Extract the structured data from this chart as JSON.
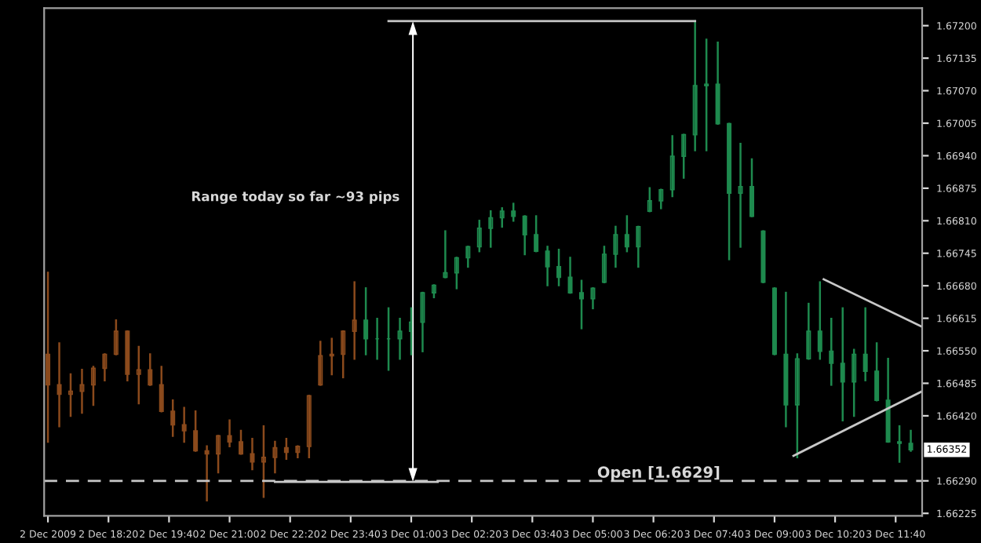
{
  "chart_data": {
    "type": "candlestick",
    "x": [
      "2009-12-02T17:00",
      "2009-12-02T17:15",
      "2009-12-02T17:30",
      "2009-12-02T17:45",
      "2009-12-02T18:00",
      "2009-12-02T18:15",
      "2009-12-02T18:30",
      "2009-12-02T18:45",
      "2009-12-02T19:00",
      "2009-12-02T19:15",
      "2009-12-02T19:30",
      "2009-12-02T19:45",
      "2009-12-02T20:00",
      "2009-12-02T20:15",
      "2009-12-02T20:30",
      "2009-12-02T20:45",
      "2009-12-02T21:00",
      "2009-12-02T21:15",
      "2009-12-02T21:30",
      "2009-12-02T21:45",
      "2009-12-02T22:00",
      "2009-12-02T22:15",
      "2009-12-02T22:30",
      "2009-12-02T22:45",
      "2009-12-02T23:00",
      "2009-12-02T23:15",
      "2009-12-02T23:30",
      "2009-12-02T23:45",
      "2009-12-03T00:00",
      "2009-12-03T00:15",
      "2009-12-03T00:30",
      "2009-12-03T00:45",
      "2009-12-03T01:00",
      "2009-12-03T01:15",
      "2009-12-03T01:30",
      "2009-12-03T01:45",
      "2009-12-03T02:00",
      "2009-12-03T02:15",
      "2009-12-03T02:30",
      "2009-12-03T02:45",
      "2009-12-03T03:00",
      "2009-12-03T03:15",
      "2009-12-03T03:30",
      "2009-12-03T03:45",
      "2009-12-03T04:00",
      "2009-12-03T04:15",
      "2009-12-03T04:30",
      "2009-12-03T04:45",
      "2009-12-03T05:00",
      "2009-12-03T05:15",
      "2009-12-03T05:30",
      "2009-12-03T05:45",
      "2009-12-03T06:00",
      "2009-12-03T06:15",
      "2009-12-03T06:30",
      "2009-12-03T06:45",
      "2009-12-03T07:00",
      "2009-12-03T07:15",
      "2009-12-03T07:30",
      "2009-12-03T07:45",
      "2009-12-03T08:00",
      "2009-12-03T08:15",
      "2009-12-03T08:30",
      "2009-12-03T08:45",
      "2009-12-03T09:00",
      "2009-12-03T09:15",
      "2009-12-03T09:30",
      "2009-12-03T09:45",
      "2009-12-03T10:00",
      "2009-12-03T10:15",
      "2009-12-03T10:30",
      "2009-12-03T10:45",
      "2009-12-03T11:00",
      "2009-12-03T11:15",
      "2009-12-03T11:30",
      "2009-12-03T11:45",
      "2009-12-03T12:00"
    ],
    "ohlc": [
      [
        1.66543,
        1.66706,
        1.66368,
        1.66482
      ],
      [
        1.66482,
        1.66565,
        1.66399,
        1.66463
      ],
      [
        1.66463,
        1.66503,
        1.6642,
        1.66469
      ],
      [
        1.66469,
        1.66512,
        1.66426,
        1.66482
      ],
      [
        1.66482,
        1.66518,
        1.66442,
        1.66515
      ],
      [
        1.66515,
        1.66543,
        1.66491,
        1.66543
      ],
      [
        1.66543,
        1.66611,
        1.66543,
        1.66589
      ],
      [
        1.66589,
        1.66589,
        1.66491,
        1.66503
      ],
      [
        1.66503,
        1.66558,
        1.66445,
        1.66512
      ],
      [
        1.66512,
        1.66543,
        1.66482,
        1.66482
      ],
      [
        1.66482,
        1.66518,
        1.66429,
        1.66429
      ],
      [
        1.66429,
        1.66451,
        1.6638,
        1.66402
      ],
      [
        1.66402,
        1.66436,
        1.66368,
        1.6639
      ],
      [
        1.6639,
        1.66429,
        1.6635,
        1.6635
      ],
      [
        1.6635,
        1.66359,
        1.66251,
        1.66344
      ],
      [
        1.66344,
        1.6638,
        1.66307,
        1.6638
      ],
      [
        1.6638,
        1.66411,
        1.66359,
        1.66368
      ],
      [
        1.66368,
        1.6639,
        1.66344,
        1.66344
      ],
      [
        1.66344,
        1.66374,
        1.66313,
        1.66328
      ],
      [
        1.66328,
        1.66399,
        1.66258,
        1.66337
      ],
      [
        1.66337,
        1.66368,
        1.66307,
        1.66356
      ],
      [
        1.66356,
        1.66374,
        1.66334,
        1.66347
      ],
      [
        1.66347,
        1.66359,
        1.66337,
        1.66359
      ],
      [
        1.66359,
        1.6646,
        1.66337,
        1.6646
      ],
      [
        1.66482,
        1.66568,
        1.66482,
        1.6654
      ],
      [
        1.6654,
        1.66574,
        1.66503,
        1.66543
      ],
      [
        1.66543,
        1.66589,
        1.66497,
        1.66589
      ],
      [
        1.66589,
        1.66687,
        1.66534,
        1.66611
      ],
      [
        1.66611,
        1.66675,
        1.66543,
        1.66574
      ],
      [
        1.66574,
        1.66614,
        1.66534,
        1.66574
      ],
      [
        1.66574,
        1.66635,
        1.66512,
        1.66574
      ],
      [
        1.66574,
        1.66614,
        1.66534,
        1.66589
      ],
      [
        1.66589,
        1.66635,
        1.66543,
        1.66607
      ],
      [
        1.66607,
        1.66666,
        1.66549,
        1.66666
      ],
      [
        1.66666,
        1.66681,
        1.66657,
        1.66681
      ],
      [
        1.66697,
        1.66789,
        1.66697,
        1.66706
      ],
      [
        1.66706,
        1.66736,
        1.66675,
        1.66736
      ],
      [
        1.66736,
        1.66758,
        1.66718,
        1.66758
      ],
      [
        1.66758,
        1.6681,
        1.66749,
        1.66795
      ],
      [
        1.66795,
        1.66829,
        1.66758,
        1.66816
      ],
      [
        1.66816,
        1.66835,
        1.66798,
        1.66829
      ],
      [
        1.66829,
        1.66844,
        1.6681,
        1.66819
      ],
      [
        1.66819,
        1.66819,
        1.66743,
        1.66782
      ],
      [
        1.66782,
        1.66819,
        1.66749,
        1.66749
      ],
      [
        1.66749,
        1.66758,
        1.66681,
        1.66718
      ],
      [
        1.66718,
        1.66752,
        1.66681,
        1.66697
      ],
      [
        1.66697,
        1.66736,
        1.66666,
        1.66666
      ],
      [
        1.66666,
        1.6669,
        1.66595,
        1.66654
      ],
      [
        1.66654,
        1.66675,
        1.66635,
        1.66675
      ],
      [
        1.66687,
        1.66758,
        1.66687,
        1.66743
      ],
      [
        1.66743,
        1.66798,
        1.66718,
        1.66782
      ],
      [
        1.66782,
        1.66819,
        1.66749,
        1.66758
      ],
      [
        1.66758,
        1.66798,
        1.66718,
        1.66798
      ],
      [
        1.66829,
        1.66875,
        1.66829,
        1.6685
      ],
      [
        1.6685,
        1.66872,
        1.66835,
        1.66872
      ],
      [
        1.66872,
        1.66979,
        1.66859,
        1.66939
      ],
      [
        1.66939,
        1.66982,
        1.66896,
        1.66982
      ],
      [
        1.66982,
        1.67209,
        1.66951,
        1.6708
      ],
      [
        1.6708,
        1.67172,
        1.66951,
        1.67083
      ],
      [
        1.67083,
        1.67166,
        1.67004,
        1.67004
      ],
      [
        1.67004,
        1.67004,
        1.66733,
        1.66865
      ],
      [
        1.66865,
        1.66964,
        1.66758,
        1.66878
      ],
      [
        1.66878,
        1.66933,
        1.66819,
        1.66819
      ],
      [
        1.66789,
        1.66789,
        1.66687,
        1.66687
      ],
      [
        1.66675,
        1.66675,
        1.66543,
        1.66543
      ],
      [
        1.66543,
        1.66666,
        1.66399,
        1.66442
      ],
      [
        1.66442,
        1.66543,
        1.66337,
        1.66534
      ],
      [
        1.66534,
        1.66644,
        1.66534,
        1.66589
      ],
      [
        1.66589,
        1.66687,
        1.66534,
        1.66549
      ],
      [
        1.66549,
        1.66614,
        1.66482,
        1.66525
      ],
      [
        1.66525,
        1.66635,
        1.66411,
        1.66488
      ],
      [
        1.66488,
        1.66552,
        1.6642,
        1.66543
      ],
      [
        1.66543,
        1.66635,
        1.66491,
        1.66509
      ],
      [
        1.66509,
        1.66565,
        1.66451,
        1.66451
      ],
      [
        1.66451,
        1.66534,
        1.66368,
        1.66368
      ],
      [
        1.66368,
        1.66399,
        1.66328,
        1.66365
      ],
      [
        1.66365,
        1.6639,
        1.6635,
        1.66352
      ]
    ],
    "colors": [
      "#8b4a1c",
      "#8b4a1c",
      "#8b4a1c",
      "#8b4a1c",
      "#8b4a1c",
      "#8b4a1c",
      "#8b4a1c",
      "#8b4a1c",
      "#8b4a1c",
      "#8b4a1c",
      "#8b4a1c",
      "#8b4a1c",
      "#8b4a1c",
      "#8b4a1c",
      "#8b4a1c",
      "#8b4a1c",
      "#8b4a1c",
      "#8b4a1c",
      "#8b4a1c",
      "#8b4a1c",
      "#8b4a1c",
      "#8b4a1c",
      "#8b4a1c",
      "#8b4a1c",
      "#8b4a1c",
      "#8b4a1c",
      "#8b4a1c",
      "#8b4a1c",
      "#1e8a4e",
      "#1e8a4e",
      "#1e8a4e",
      "#1e8a4e",
      "#1e8a4e",
      "#1e8a4e",
      "#1e8a4e",
      "#1e8a4e",
      "#1e8a4e",
      "#1e8a4e",
      "#1e8a4e",
      "#1e8a4e",
      "#1e8a4e",
      "#1e8a4e",
      "#1e8a4e",
      "#1e8a4e",
      "#1e8a4e",
      "#1e8a4e",
      "#1e8a4e",
      "#1e8a4e",
      "#1e8a4e",
      "#1e8a4e",
      "#1e8a4e",
      "#1e8a4e",
      "#1e8a4e",
      "#1e8a4e",
      "#1e8a4e",
      "#1e8a4e",
      "#1e8a4e",
      "#1e8a4e",
      "#1e8a4e",
      "#1e8a4e",
      "#1e8a4e",
      "#1e8a4e",
      "#1e8a4e",
      "#1e8a4e",
      "#1e8a4e",
      "#1e8a4e",
      "#1e8a4e",
      "#1e8a4e",
      "#1e8a4e",
      "#1e8a4e",
      "#1e8a4e",
      "#1e8a4e",
      "#1e8a4e",
      "#1e8a4e",
      "#1e8a4e",
      "#1e8a4e",
      "#1e8a4e"
    ],
    "series": [
      {
        "type": "line",
        "color": "#c8c8c8",
        "x": [
          "2009-12-03T10:05",
          "2009-12-03T12:15"
        ],
        "values": [
          1.66693,
          1.66598
        ]
      },
      {
        "type": "line",
        "color": "#c8c8c8",
        "x": [
          "2009-12-03T09:25",
          "2009-12-03T12:15"
        ],
        "values": [
          1.6634,
          1.66469
        ]
      },
      {
        "type": "line",
        "color": "#c8c8c8",
        "x": [
          "2009-12-03T00:30",
          "2009-12-03T07:15"
        ],
        "values": [
          1.67209,
          1.67209
        ]
      },
      {
        "type": "line",
        "color": "#c8c8c8",
        "x": [
          "2009-12-02T22:00",
          "2009-12-03T01:35"
        ],
        "values": [
          1.66288,
          1.66288
        ]
      }
    ],
    "ref_lines": [
      {
        "axis": "y",
        "value": 1.6629,
        "label": "Open [1.6629]",
        "color": "#c8c8c8",
        "line_style": "dashed"
      }
    ],
    "annotations": [
      "Range today so far ~93 pips",
      {
        "text": "1.66352",
        "x": "2009-12-03T12:00",
        "y": 1.66352
      }
    ],
    "xlim": [
      "2009-12-02T16:55",
      "2009-12-03T12:15"
    ],
    "ylim": [
      1.6622,
      1.67235
    ],
    "xticks": [
      {
        "value": "2009-12-02T17:00",
        "label": "2 Dec 2009"
      },
      {
        "value": "2009-12-02T18:20",
        "label": "2 Dec 18:20"
      },
      {
        "value": "2009-12-02T19:40",
        "label": "2 Dec 19:40"
      },
      {
        "value": "2009-12-02T21:00",
        "label": "2 Dec 21:00"
      },
      {
        "value": "2009-12-02T22:20",
        "label": "2 Dec 22:20"
      },
      {
        "value": "2009-12-02T23:40",
        "label": "2 Dec 23:40"
      },
      {
        "value": "2009-12-03T01:00",
        "label": "3 Dec 01:00"
      },
      {
        "value": "2009-12-03T02:20",
        "label": "3 Dec 02:20"
      },
      {
        "value": "2009-12-03T03:40",
        "label": "3 Dec 03:40"
      },
      {
        "value": "2009-12-03T05:00",
        "label": "3 Dec 05:00"
      },
      {
        "value": "2009-12-03T06:20",
        "label": "3 Dec 06:20"
      },
      {
        "value": "2009-12-03T07:40",
        "label": "3 Dec 07:40"
      },
      {
        "value": "2009-12-03T09:00",
        "label": "3 Dec 09:00"
      },
      {
        "value": "2009-12-03T10:20",
        "label": "3 Dec 10:20"
      },
      {
        "value": "2009-12-03T11:40",
        "label": "3 Dec 11:40"
      }
    ],
    "yticks": [
      {
        "value": 1.66225,
        "label": "1.66225"
      },
      {
        "value": 1.6629,
        "label": "1.66290"
      },
      {
        "value": 1.6642,
        "label": "1.66420"
      },
      {
        "value": 1.66485,
        "label": "1.66485"
      },
      {
        "value": 1.6655,
        "label": "1.66550"
      },
      {
        "value": 1.66615,
        "label": "1.66615"
      },
      {
        "value": 1.6668,
        "label": "1.66680"
      },
      {
        "value": 1.66745,
        "label": "1.66745"
      },
      {
        "value": 1.6681,
        "label": "1.66810"
      },
      {
        "value": 1.66875,
        "label": "1.66875"
      },
      {
        "value": 1.6694,
        "label": "1.66940"
      },
      {
        "value": 1.67005,
        "label": "1.67005"
      },
      {
        "value": 1.6707,
        "label": "1.67070"
      },
      {
        "value": 1.67135,
        "label": "1.67135"
      },
      {
        "value": 1.672,
        "label": "1.67200"
      }
    ]
  }
}
